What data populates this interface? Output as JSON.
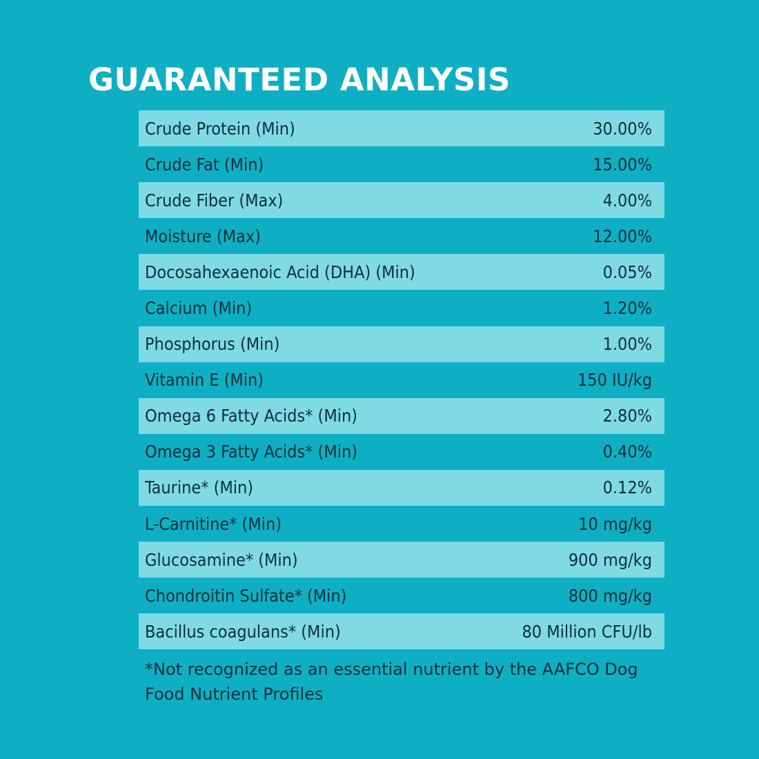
{
  "title": "GUARANTEED ANALYSIS",
  "rows": [
    {
      "label": "Crude Protein (Min)",
      "value": "30.00%"
    },
    {
      "label": "Crude Fat (Min)",
      "value": "15.00%"
    },
    {
      "label": "Crude Fiber (Max)",
      "value": "4.00%"
    },
    {
      "label": "Moisture (Max)",
      "value": "12.00%"
    },
    {
      "label": "Docosahexaenoic Acid (DHA) (Min)",
      "value": "0.05%"
    },
    {
      "label": "Calcium (Min)",
      "value": "1.20%"
    },
    {
      "label": "Phosphorus (Min)",
      "value": "1.00%"
    },
    {
      "label": "Vitamin E (Min)",
      "value": "150 IU/kg"
    },
    {
      "label": "Omega 6 Fatty Acids* (Min)",
      "value": "2.80%"
    },
    {
      "label": "Omega 3 Fatty Acids* (Min)",
      "value": "0.40%"
    },
    {
      "label": "Taurine* (Min)",
      "value": "0.12%"
    },
    {
      "label": "L-Carnitine* (Min)",
      "value": "10 mg/kg"
    },
    {
      "label": "Glucosamine* (Min)",
      "value": "900 mg/kg"
    },
    {
      "label": "Chondroitin Sulfate* (Min)",
      "value": "800 mg/kg"
    },
    {
      "label": "Bacillus coagulans* (Min)",
      "value": "80 Million CFU/lb"
    }
  ],
  "footnote": "*Not recognized as an essential nutrient by the AAFCO Dog Food Nutrient Profiles",
  "colors": {
    "background": "#0fafc3",
    "row_shade": "#7fdae3",
    "text": "#0b2f3c",
    "title": "#ffffff"
  }
}
